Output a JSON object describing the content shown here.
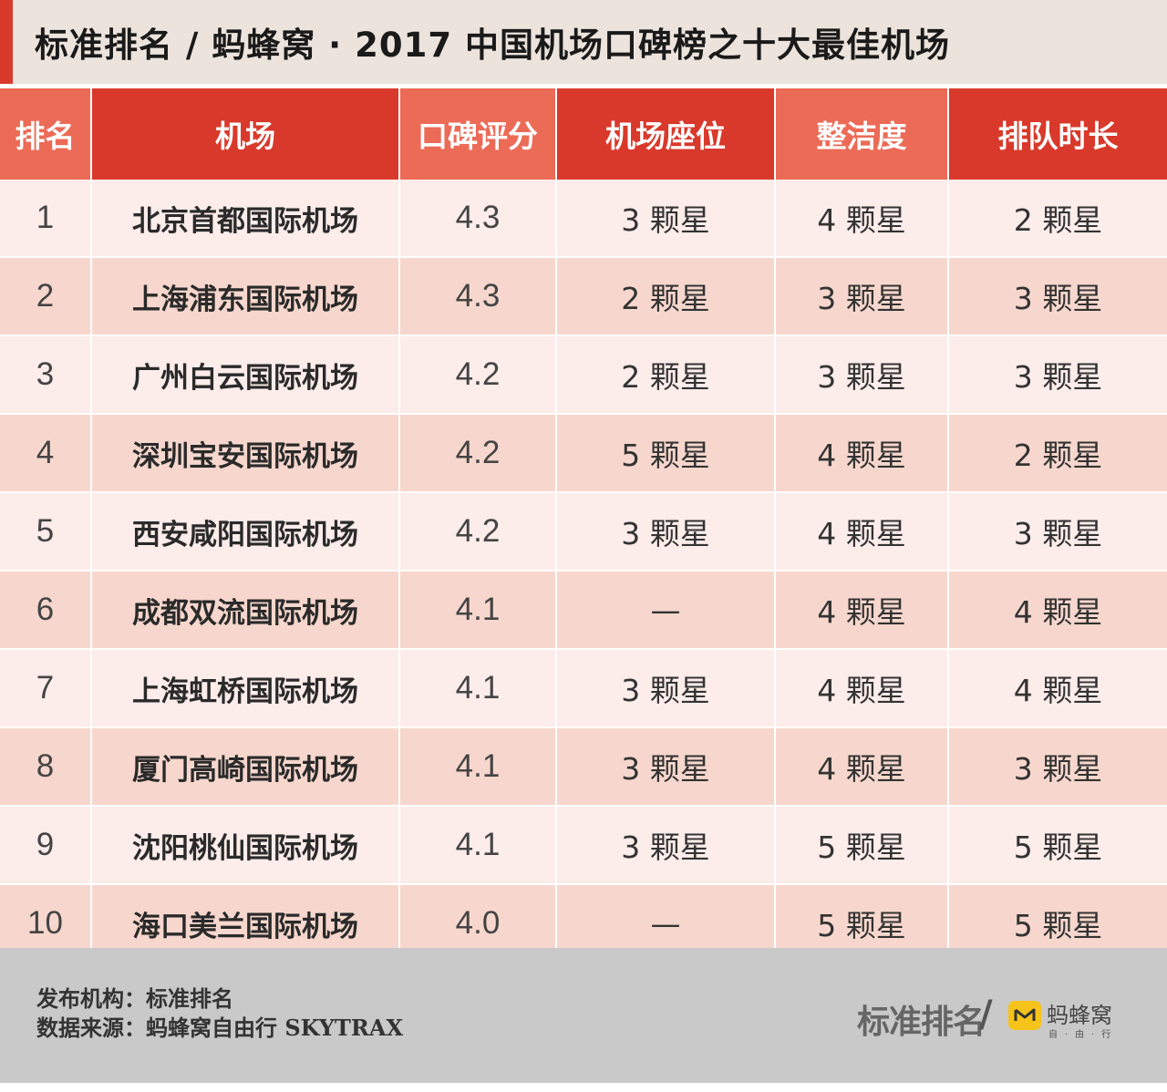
{
  "title": "标准排名 / 蚂蜂窝 · 2017 中国机场口碑榜之十大最佳机场",
  "colors": {
    "header_dark": "#d9392b",
    "header_light": "#ec6b57",
    "row_light": "#fcecea",
    "row_dark": "#f7d7cd",
    "footer_bg": "#c9c9c9"
  },
  "table": {
    "headers": [
      "排名",
      "机场",
      "口碑评分",
      "机场座位",
      "整洁度",
      "排队时长"
    ],
    "rows": [
      [
        "1",
        "北京首都国际机场",
        "4.3",
        "3 颗星",
        "4 颗星",
        "2 颗星"
      ],
      [
        "2",
        "上海浦东国际机场",
        "4.3",
        "2 颗星",
        "3 颗星",
        "3 颗星"
      ],
      [
        "3",
        "广州白云国际机场",
        "4.2",
        "2 颗星",
        "3 颗星",
        "3 颗星"
      ],
      [
        "4",
        "深圳宝安国际机场",
        "4.2",
        "5 颗星",
        "4 颗星",
        "2 颗星"
      ],
      [
        "5",
        "西安咸阳国际机场",
        "4.2",
        "3 颗星",
        "4 颗星",
        "3 颗星"
      ],
      [
        "6",
        "成都双流国际机场",
        "4.1",
        "—",
        "4 颗星",
        "4 颗星"
      ],
      [
        "7",
        "上海虹桥国际机场",
        "4.1",
        "3 颗星",
        "4 颗星",
        "4 颗星"
      ],
      [
        "8",
        "厦门高崎国际机场",
        "4.1",
        "3 颗星",
        "4 颗星",
        "3 颗星"
      ],
      [
        "9",
        "沈阳桃仙国际机场",
        "4.1",
        "3 颗星",
        "5 颗星",
        "5 颗星"
      ],
      [
        "10",
        "海口美兰国际机场",
        "4.0",
        "—",
        "5 颗星",
        "5 颗星"
      ]
    ]
  },
  "footer": {
    "publisher": "发布机构：标准排名",
    "source": "数据来源：蚂蜂窝自由行 SKYTRAX",
    "logo_main": "标准排名",
    "logo_separator": "/",
    "logo_partner": "蚂蜂窝",
    "logo_partner_sub": "自·由·行",
    "partner_icon": "mafengwo-logo-icon"
  }
}
